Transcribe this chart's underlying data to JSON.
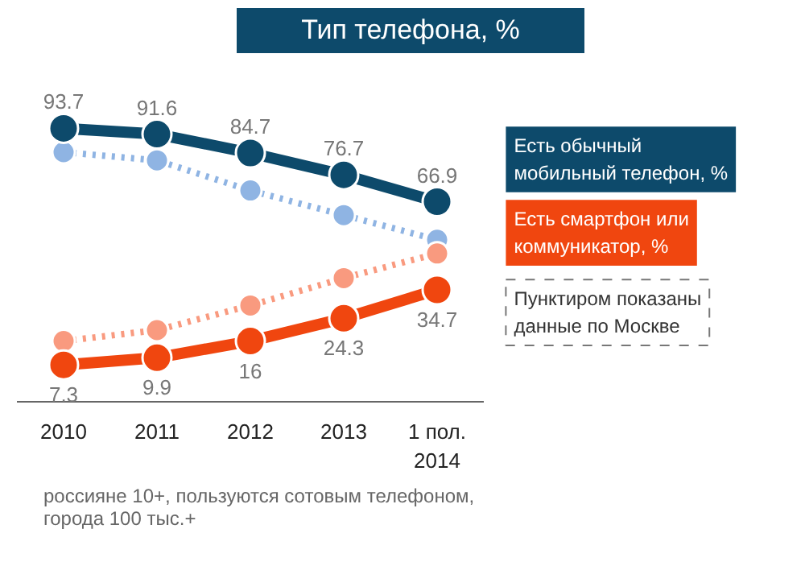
{
  "chart_data": {
    "type": "line",
    "title": "Тип телефона, %",
    "categories": [
      "2010",
      "2011",
      "2012",
      "2013",
      "1 пол.\n2014"
    ],
    "legend": "right",
    "marker": "circle",
    "series": [
      {
        "name": "Есть обычный мобильный телефон, %",
        "color": "#0d4a6b",
        "values": [
          93.7,
          91.6,
          84.7,
          76.7,
          66.9
        ],
        "value_labels": [
          "93.7",
          "91.6",
          "84.7",
          "76.7",
          "66.9"
        ],
        "line_style": "solid"
      },
      {
        "name": "Есть смартфон или коммуникатор, %",
        "color": "#f0460f",
        "values": [
          7.3,
          9.9,
          16,
          24.3,
          34.7
        ],
        "value_labels": [
          "7.3",
          "9.9",
          "16",
          "24.3",
          "34.7"
        ],
        "line_style": "solid"
      },
      {
        "color": "#8fb4e3",
        "values": [
          85,
          82,
          71,
          62,
          53
        ],
        "line_style": "dotted"
      },
      {
        "color": "#f99a7f",
        "values": [
          16,
          20,
          29,
          39,
          48
        ],
        "line_style": "dotted"
      }
    ],
    "annotations": [
      "Пунктиром показаны данные по Москве",
      "россияне 10+, пользуются сотовым телефоном, города 100 тыс.+"
    ]
  }
}
